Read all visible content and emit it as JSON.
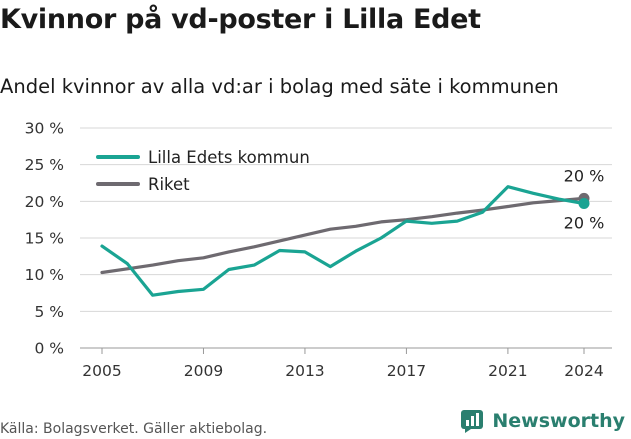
{
  "header": {
    "title": "Kvinnor på vd-poster i Lilla Edet",
    "subtitle": "Andel kvinnor av alla vd:ar i bolag med säte i kommunen"
  },
  "footer": {
    "source": "Källa: Bolagsverket. Gäller aktiebolag.",
    "brand": "Newsworthy"
  },
  "colors": {
    "local": "#1aa493",
    "national": "#6e6a70",
    "grid": "#d7d7d7"
  },
  "chart_data": {
    "type": "line",
    "x": [
      2005,
      2006,
      2007,
      2008,
      2009,
      2010,
      2011,
      2012,
      2013,
      2014,
      2015,
      2016,
      2017,
      2018,
      2019,
      2020,
      2021,
      2022,
      2023,
      2024
    ],
    "xticks": [
      2005,
      2009,
      2013,
      2017,
      2021,
      2024
    ],
    "xtick_labels": [
      "2005",
      "2009",
      "2013",
      "2017",
      "2021",
      "2024"
    ],
    "ylim": [
      0,
      30
    ],
    "yticks": [
      0,
      5,
      10,
      15,
      20,
      25,
      30
    ],
    "ytick_labels": [
      "0 %",
      "5 %",
      "10 %",
      "15 %",
      "20 %",
      "25 %",
      "30 %"
    ],
    "grid": true,
    "legend_position": "top-left",
    "series": [
      {
        "name": "Lilla Edets kommun",
        "color": "#1aa493",
        "values": [
          13.9,
          11.5,
          7.2,
          7.7,
          8.0,
          10.7,
          11.3,
          13.3,
          13.1,
          11.1,
          13.2,
          15.0,
          17.3,
          17.0,
          17.3,
          18.5,
          22.0,
          21.1,
          20.3,
          19.7
        ],
        "end_label": "20 %"
      },
      {
        "name": "Riket",
        "color": "#6e6a70",
        "values": [
          10.3,
          10.8,
          11.3,
          11.9,
          12.3,
          13.1,
          13.8,
          14.6,
          15.4,
          16.2,
          16.6,
          17.2,
          17.5,
          17.9,
          18.4,
          18.8,
          19.3,
          19.8,
          20.1,
          20.4
        ],
        "end_label": "20 %"
      }
    ]
  }
}
